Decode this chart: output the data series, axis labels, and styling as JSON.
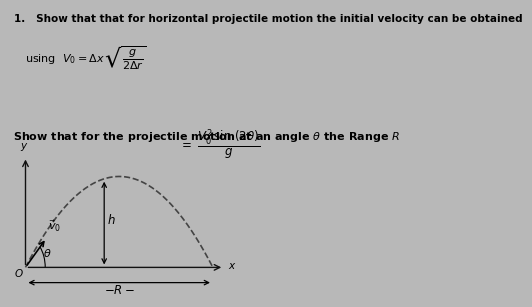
{
  "background_color": "#b8b8b8",
  "title_line1": "1.   Show that that for horizontal projectile motion the initial velocity can be obtained",
  "parabola_color": "#444444",
  "axis_color": "#111111",
  "font_size_title": 7.5,
  "font_size_body": 8.0,
  "font_size_small": 7.5
}
